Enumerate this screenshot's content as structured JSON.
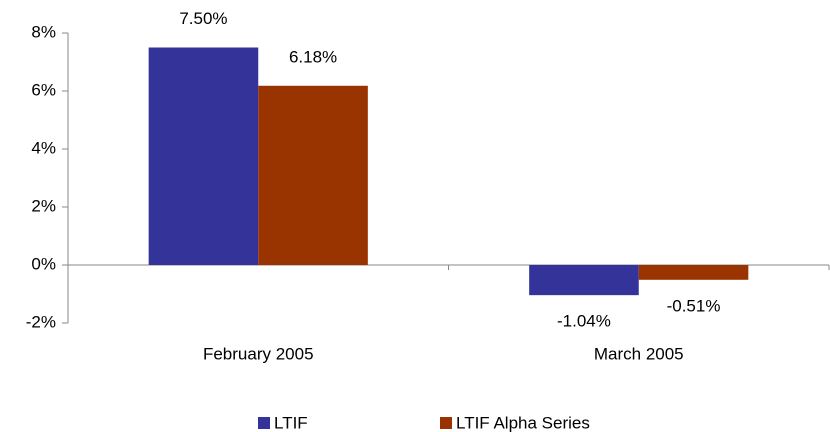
{
  "chart_data": {
    "type": "bar",
    "categories": [
      "February 2005",
      "March 2005"
    ],
    "series": [
      {
        "name": "LTIF",
        "color": "#333399",
        "values": [
          7.5,
          -1.04
        ],
        "value_labels": [
          "7.50%",
          "-1.04%"
        ]
      },
      {
        "name": "LTIF Alpha Series",
        "color": "#993300",
        "values": [
          6.18,
          -0.51
        ],
        "value_labels": [
          "6.18%",
          "-0.51%"
        ]
      }
    ],
    "ylim": [
      -2,
      8
    ],
    "yticks": [
      {
        "value": -2,
        "label": "-2%"
      },
      {
        "value": 0,
        "label": "0%"
      },
      {
        "value": 2,
        "label": "2%"
      },
      {
        "value": 4,
        "label": "4%"
      },
      {
        "value": 6,
        "label": "6%"
      },
      {
        "value": 8,
        "label": "8%"
      }
    ],
    "legend": "bottom"
  }
}
